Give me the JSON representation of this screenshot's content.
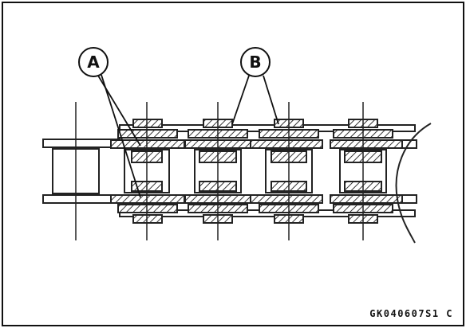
{
  "callouts": [
    {
      "id": "A",
      "label": "A"
    },
    {
      "id": "B",
      "label": "B"
    }
  ],
  "figure_code": "GK040607S1 C"
}
